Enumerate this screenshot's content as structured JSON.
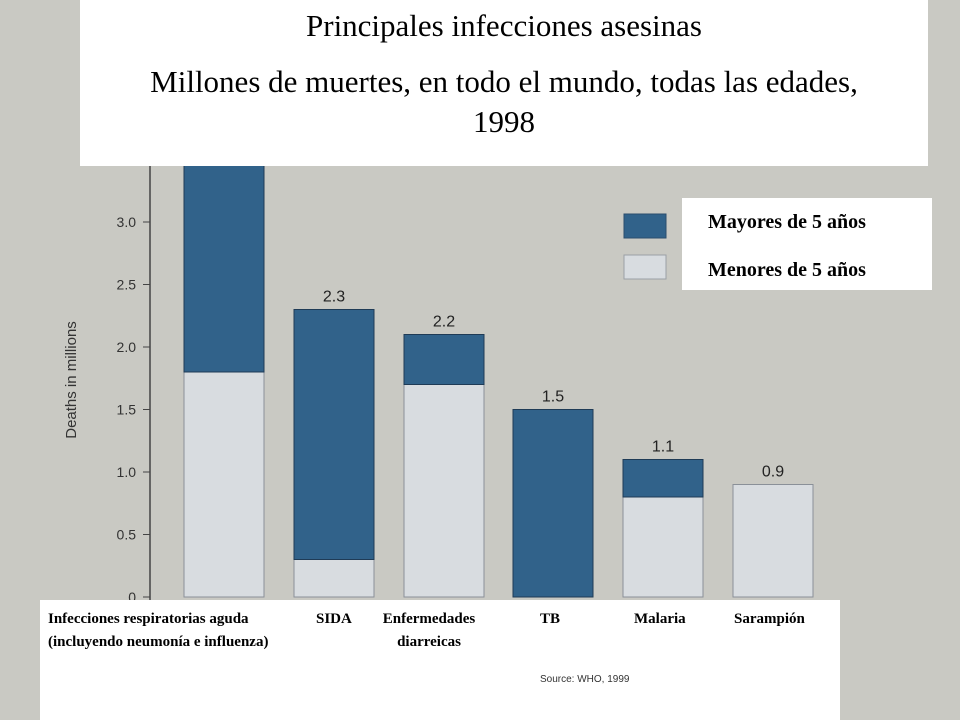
{
  "title": {
    "line1": "Principales infecciones asesinas",
    "line2": "Millones de muertes, en todo el mundo, todas las edades, 1998"
  },
  "legend": {
    "over5": "Mayores de 5 años",
    "under5": "Menores de 5 años"
  },
  "colors": {
    "over5": "#31628a",
    "under5": "#d8dce0",
    "background": "#c9c9c3"
  },
  "category_labels": {
    "resp": "Infecciones respiratorias aguda (incluyendo neumonía e influenza)",
    "aids": "SIDA",
    "diarrheal": "Enfermedades diarreicas",
    "tb": "TB",
    "malaria": "Malaria",
    "measles": "Sarampión"
  },
  "source_note": "Source: WHO, 1999",
  "chart_data": {
    "type": "bar",
    "stacked": true,
    "ylabel": "Deaths in millions",
    "ylim": [
      0,
      3.5
    ],
    "y_ticks": [
      "0",
      "0.5",
      "1.0",
      "1.5",
      "2.0",
      "2.5",
      "3.0"
    ],
    "categories": [
      "Infecciones respiratorias aguda",
      "SIDA",
      "Enfermedades diarreicas",
      "TB",
      "Malaria",
      "Sarampión"
    ],
    "series": [
      {
        "name": "Menores de 5 años",
        "values": [
          1.8,
          0.3,
          1.7,
          0.0,
          0.8,
          0.9
        ]
      },
      {
        "name": "Mayores de 5 años",
        "values": [
          1.7,
          2.0,
          0.4,
          1.5,
          0.3,
          0.0
        ]
      }
    ],
    "value_labels": [
      "",
      "2.3",
      "2.2",
      "1.5",
      "1.1",
      "0.9"
    ],
    "legend_position": "top-right",
    "grid": false
  }
}
